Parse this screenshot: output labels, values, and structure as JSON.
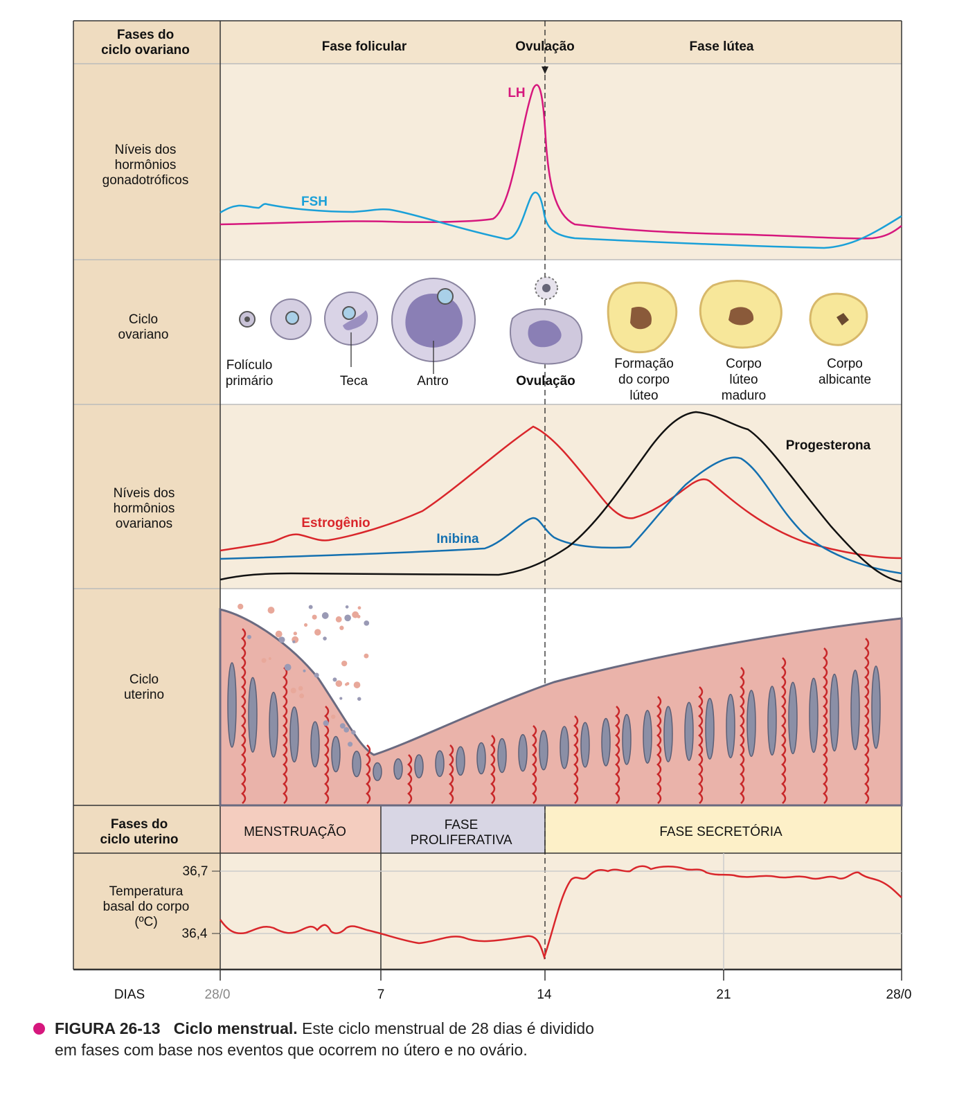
{
  "header": {
    "left_label": [
      "Fases do",
      "ciclo ovariano"
    ],
    "phases": [
      "Fase folicular",
      "Ovulação",
      "Fase lútea"
    ]
  },
  "rows": {
    "gonadotropic": [
      "Níveis dos",
      "hormônios",
      "gonadotróficos"
    ],
    "ovarian_cycle": [
      "Ciclo",
      "ovariano"
    ],
    "ovarian_hormones": [
      "Níveis dos",
      "hormônios",
      "ovarianos"
    ],
    "uterine_cycle": [
      "Ciclo",
      "uterino"
    ],
    "uterine_phases_label": [
      "Fases do",
      "ciclo uterino"
    ],
    "temperature": [
      "Temperatura",
      "basal do corpo",
      "(ºC)"
    ]
  },
  "hormone_labels": {
    "lh": "LH",
    "fsh": "FSH",
    "estrogen": "Estrogênio",
    "inhibin": "Inibina",
    "progesterone": "Progesterona"
  },
  "follicle_labels": {
    "primary": [
      "Folículo",
      "primário"
    ],
    "theca": "Teca",
    "antrum": "Antro",
    "ovulation": "Ovulação",
    "corpus_formation": [
      "Formação",
      "do corpo",
      "lúteo"
    ],
    "corpus_mature": [
      "Corpo",
      "lúteo",
      "maduro"
    ],
    "corpus_albicans": [
      "Corpo",
      "albicante"
    ]
  },
  "uterine_phases": [
    "MENSTRUAÇÃO",
    "FASE",
    "PROLIFERATIVA",
    "FASE SECRETÓRIA"
  ],
  "temperature_ticks": [
    "36,7",
    "36,4"
  ],
  "days": {
    "label": "DIAS",
    "ticks": [
      "28/0",
      "7",
      "14",
      "21",
      "28/0"
    ]
  },
  "caption": {
    "figure": "FIGURA 26-13",
    "title": "Ciclo menstrual.",
    "text1": "Este ciclo menstrual de 28 dias é dividido",
    "text2": "em fases com base nos eventos que ocorrem no útero e no ovário."
  },
  "colors": {
    "lh": "#d6177d",
    "fsh": "#1aa0d8",
    "estrogen": "#d9262b",
    "inhibin": "#1470b0",
    "progesterone": "#111111",
    "panel": "#f6ecdc",
    "left_column": "#efdcc0",
    "menstruation": "#f4cdbf",
    "proliferative": "#d8d6e4",
    "secretory": "#fdf0c8"
  }
}
